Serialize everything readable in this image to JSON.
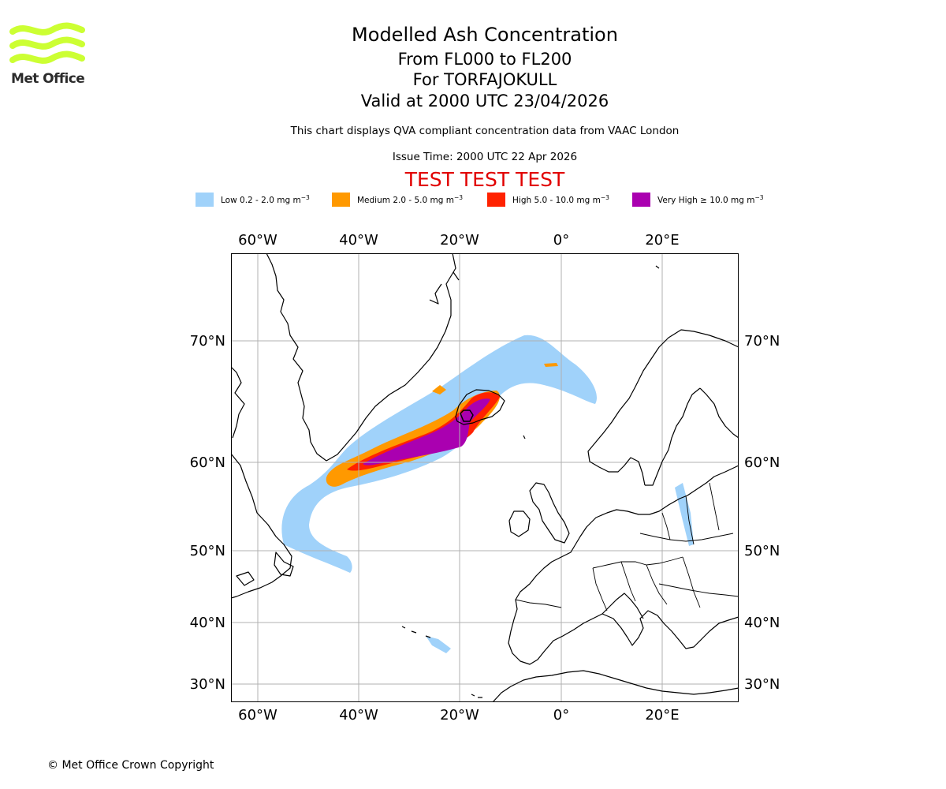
{
  "header": {
    "title": "Modelled Ash Concentration",
    "levels": "From FL000 to FL200",
    "volcano": "For TORFAJOKULL",
    "valid_time": "Valid at 2000 UTC 23/04/2026",
    "disclaimer": "This chart displays QVA compliant concentration data from VAAC London",
    "issue_time": "Issue Time: 2000 UTC 22 Apr 2026",
    "test_banner": "TEST TEST TEST"
  },
  "logo": {
    "text": "Met Office",
    "color": "#ccff33"
  },
  "legend": [
    {
      "label": "Low 0.2 - 2.0 mg m",
      "unit_exp": "−3",
      "color": "#a0d2fa"
    },
    {
      "label": "Medium 2.0 - 5.0 mg m",
      "unit_exp": "−3",
      "color": "#ff9900"
    },
    {
      "label": "High 5.0 - 10.0 mg m",
      "unit_exp": "−3",
      "color": "#ff2200"
    },
    {
      "label": "Very High  ≥  10.0 mg m",
      "unit_exp": "−3",
      "color": "#aa00b0"
    }
  ],
  "map": {
    "lon_ticks": [
      "60°W",
      "40°W",
      "20°W",
      "0°",
      "20°E"
    ],
    "lat_ticks": [
      "70°N",
      "60°N",
      "50°N",
      "40°N",
      "30°N"
    ],
    "colors": {
      "coast": "#000000",
      "grid": "#b0b0b0",
      "border": "#000000"
    }
  },
  "footer": {
    "copyright": "© Met Office Crown Copyright"
  }
}
